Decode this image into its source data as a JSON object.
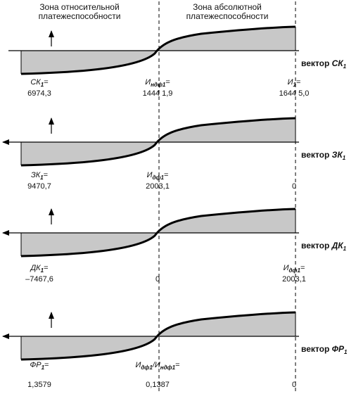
{
  "zones": {
    "relative": "Зона относительной платежеспособности",
    "relative_line1": "Зона относительной",
    "relative_line2": "платежеспособности",
    "absolute": "Зона абсолютной платежеспособности",
    "absolute_line1": "Зона абсолютной",
    "absolute_line2": "платежеспособности"
  },
  "panels": [
    {
      "vector_word": "вектор",
      "vector_letter": "СК",
      "vector_sub": "1",
      "left": {
        "name": "СК",
        "sub": "1",
        "value": "6974,3"
      },
      "middle": {
        "name": "И",
        "sub": "ндф1",
        "value": "1444 1,9"
      },
      "right": {
        "name": "И",
        "sub": "1",
        "value": "1644 5,0"
      }
    },
    {
      "vector_word": "вектор",
      "vector_letter": "ЗК",
      "vector_sub": "1",
      "left": {
        "name": "ЗК",
        "sub": "1",
        "value": "9470,7"
      },
      "middle": {
        "name": "И",
        "sub": "дф1",
        "value": "2003,1"
      },
      "right": {
        "name": "",
        "sub": "",
        "value": "0"
      }
    },
    {
      "vector_word": "вектор",
      "vector_letter": "ДК",
      "vector_sub": "1",
      "left": {
        "name": "ДК",
        "sub": "1",
        "value": "–7467,6"
      },
      "middle": {
        "name": "",
        "sub": "",
        "value": "0"
      },
      "right": {
        "name": "И",
        "sub": "дф1",
        "value": "2003,1"
      }
    },
    {
      "vector_word": "вектор",
      "vector_letter": "ФР",
      "vector_sub": "1",
      "left": {
        "name": "ФР",
        "sub": "1",
        "value": "1,3579"
      },
      "middle": {
        "name": "И",
        "sub": "дф1",
        "name2": "/И",
        "sub2": "ндф1",
        "value": "0,1387"
      },
      "right": {
        "name": "",
        "sub": "",
        "value": "0"
      }
    }
  ],
  "colors": {
    "fill": "#c8c8c8",
    "curve": "#000000",
    "axis": "#000000"
  }
}
